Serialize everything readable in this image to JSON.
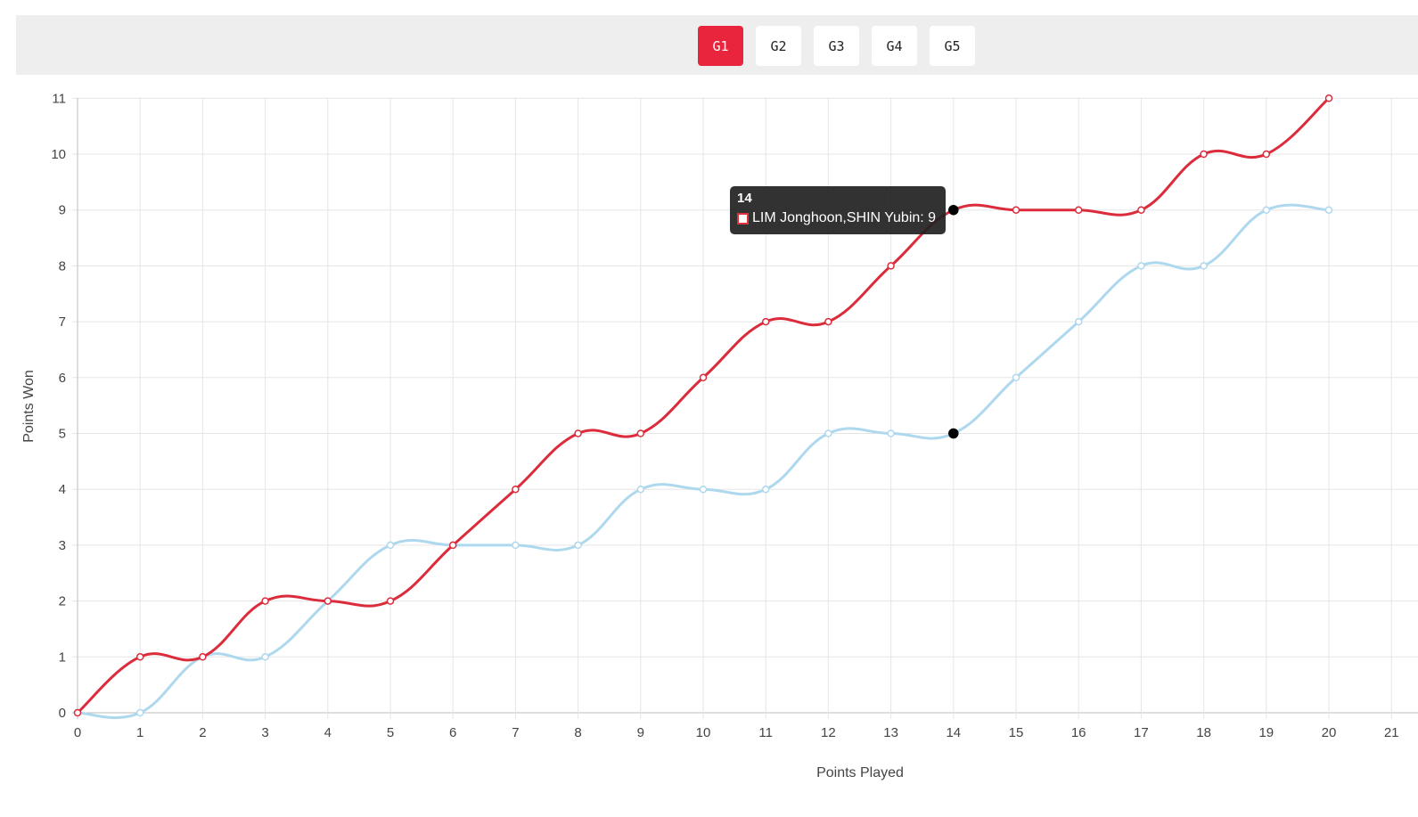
{
  "tabs": [
    {
      "label": "G1",
      "active": true
    },
    {
      "label": "G2",
      "active": false
    },
    {
      "label": "G3",
      "active": false
    },
    {
      "label": "G4",
      "active": false
    },
    {
      "label": "G5",
      "active": false
    }
  ],
  "tooltip": {
    "title": "14",
    "series_label": "LIM Jonghoon,SHIN Yubin",
    "value": "9"
  },
  "chart_data": {
    "type": "line",
    "xlabel": "Points Played",
    "ylabel": "Points Won",
    "x": [
      0,
      1,
      2,
      3,
      4,
      5,
      6,
      7,
      8,
      9,
      10,
      11,
      12,
      13,
      14,
      15,
      16,
      17,
      18,
      19,
      20
    ],
    "xlim": [
      0,
      21
    ],
    "ylim": [
      0,
      11
    ],
    "x_ticks": [
      "0",
      "1",
      "2",
      "3",
      "4",
      "5",
      "6",
      "7",
      "8",
      "9",
      "10",
      "11",
      "12",
      "13",
      "14",
      "15",
      "16",
      "17",
      "18",
      "19",
      "20",
      "21"
    ],
    "y_ticks": [
      "0",
      "1",
      "2",
      "3",
      "4",
      "5",
      "6",
      "7",
      "8",
      "9",
      "10",
      "11"
    ],
    "grid": true,
    "hover_x": 14,
    "series": [
      {
        "name": "LIM Jonghoon,SHIN Yubin",
        "color": "#dc2c3c",
        "values": [
          0,
          1,
          1,
          2,
          2,
          2,
          3,
          4,
          5,
          5,
          6,
          7,
          7,
          8,
          9,
          9,
          9,
          9,
          10,
          10,
          11
        ]
      },
      {
        "color": "#aed8ee",
        "values": [
          0,
          0,
          1,
          1,
          2,
          3,
          3,
          3,
          3,
          4,
          4,
          4,
          5,
          5,
          5,
          6,
          7,
          8,
          8,
          9,
          9
        ]
      }
    ]
  }
}
